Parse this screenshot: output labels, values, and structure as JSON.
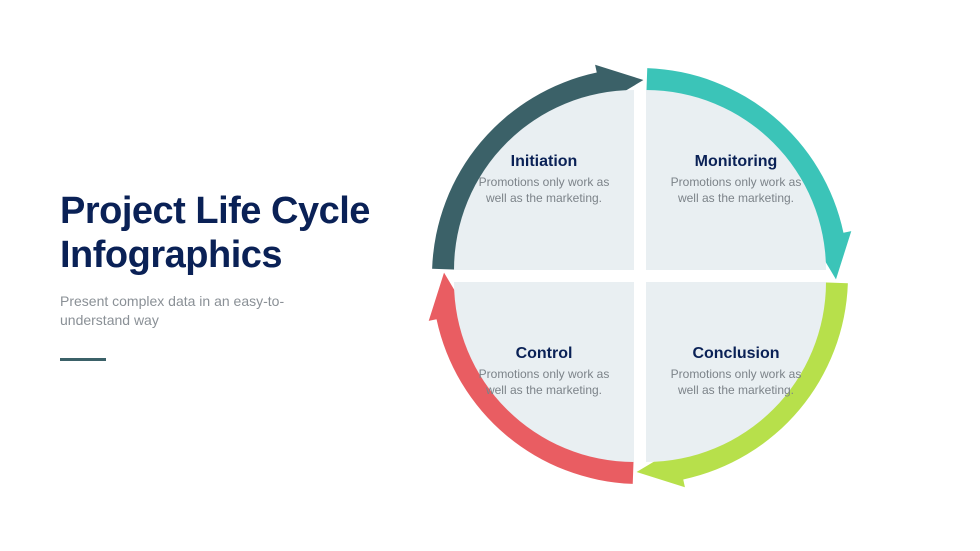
{
  "header": {
    "title": "Project Life Cycle Infographics",
    "subtitle": "Present complex data in an easy-to-understand way",
    "title_color": "#0a2156",
    "subtitle_color": "#8a9096",
    "accent_bar_color": "#3b6168"
  },
  "diagram": {
    "type": "circular-cycle",
    "background_fill": "#e9eff2",
    "gap_color": "#ffffff",
    "gap_width": 12,
    "arrows": [
      {
        "id": "top",
        "color": "#3b6168",
        "start_angle": 180,
        "end_angle": 270
      },
      {
        "id": "right",
        "color": "#3bc4b8",
        "start_angle": 270,
        "end_angle": 360
      },
      {
        "id": "bottom",
        "color": "#b7e04b",
        "start_angle": 0,
        "end_angle": 90
      },
      {
        "id": "left",
        "color": "#e95d62",
        "start_angle": 90,
        "end_angle": 180
      }
    ],
    "arrow_stroke_width": 24,
    "quadrants": [
      {
        "pos": "tl",
        "title": "Initiation",
        "desc": "Promotions only work as well as the marketing."
      },
      {
        "pos": "tr",
        "title": "Monitoring",
        "desc": "Promotions only work as well as the marketing."
      },
      {
        "pos": "bl",
        "title": "Control",
        "desc": "Promotions only work as well as the marketing."
      },
      {
        "pos": "br",
        "title": "Conclusion",
        "desc": "Promotions only work as well as the marketing."
      }
    ],
    "quadrant_title_color": "#0a2156",
    "quadrant_desc_color": "#7c8389"
  }
}
